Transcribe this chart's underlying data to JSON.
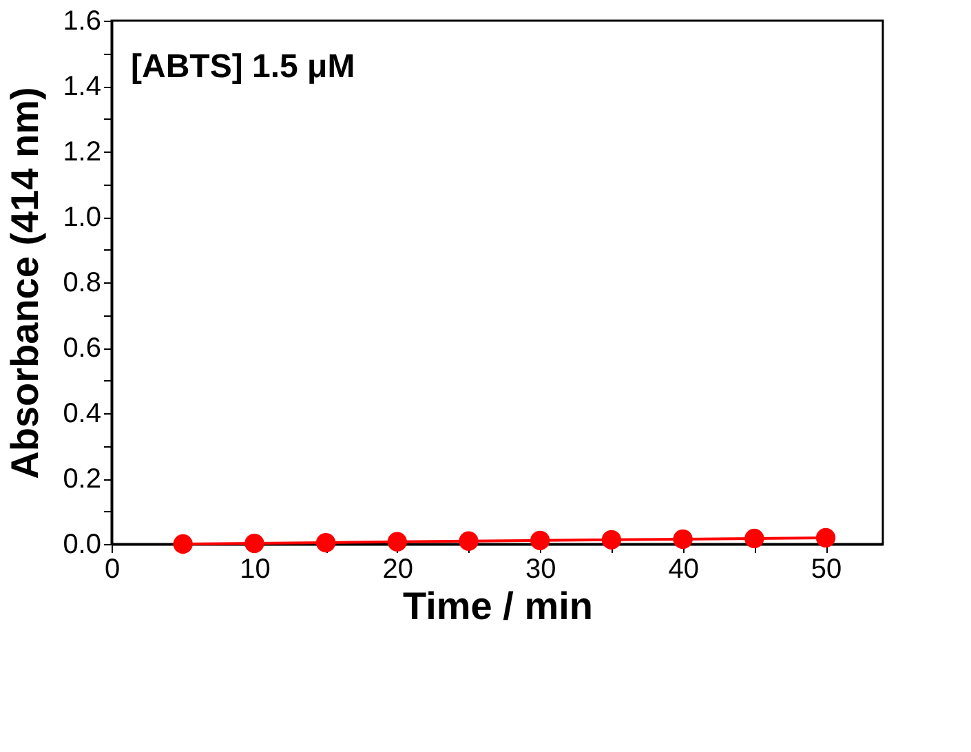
{
  "chart_data": {
    "type": "line",
    "xlabel": "Time / min",
    "ylabel": "Absorbance (414 nm)",
    "annotations": [
      "[ABTS] 1.5 μM"
    ],
    "x": [
      5,
      10,
      15,
      20,
      25,
      30,
      35,
      40,
      45,
      50
    ],
    "series": [
      {
        "color": "#ff0000",
        "values": [
          0.0,
          0.002,
          0.004,
          0.007,
          0.009,
          0.011,
          0.013,
          0.015,
          0.017,
          0.019
        ]
      }
    ],
    "marker": "circle",
    "line_style": "solid",
    "xlim": [
      0,
      54
    ],
    "xticks": [
      0,
      {
        "value": 5,
        "label": null
      },
      10,
      {
        "value": 15,
        "label": null
      },
      20,
      {
        "value": 25,
        "label": null
      },
      30,
      {
        "value": 35,
        "label": null
      },
      40,
      {
        "value": 45,
        "label": null
      },
      50
    ],
    "ylim": [
      0,
      1.6
    ],
    "yticks": [
      {
        "value": 0,
        "label": "0.0"
      },
      {
        "value": 0.1,
        "label": null
      },
      {
        "value": 0.2,
        "label": "0.2"
      },
      {
        "value": 0.3,
        "label": null
      },
      {
        "value": 0.4,
        "label": "0.4"
      },
      {
        "value": 0.5,
        "label": null
      },
      {
        "value": 0.6,
        "label": "0.6"
      },
      {
        "value": 0.7,
        "label": null
      },
      {
        "value": 0.8,
        "label": "0.8"
      },
      {
        "value": 0.9,
        "label": null
      },
      {
        "value": 1.0,
        "label": "1.0"
      },
      {
        "value": 1.1,
        "label": null
      },
      {
        "value": 1.2,
        "label": "1.2"
      },
      {
        "value": 1.3,
        "label": null
      },
      {
        "value": 1.4,
        "label": "1.4"
      },
      {
        "value": 1.5,
        "label": null
      },
      {
        "value": 1.6,
        "label": "1.6"
      }
    ]
  }
}
